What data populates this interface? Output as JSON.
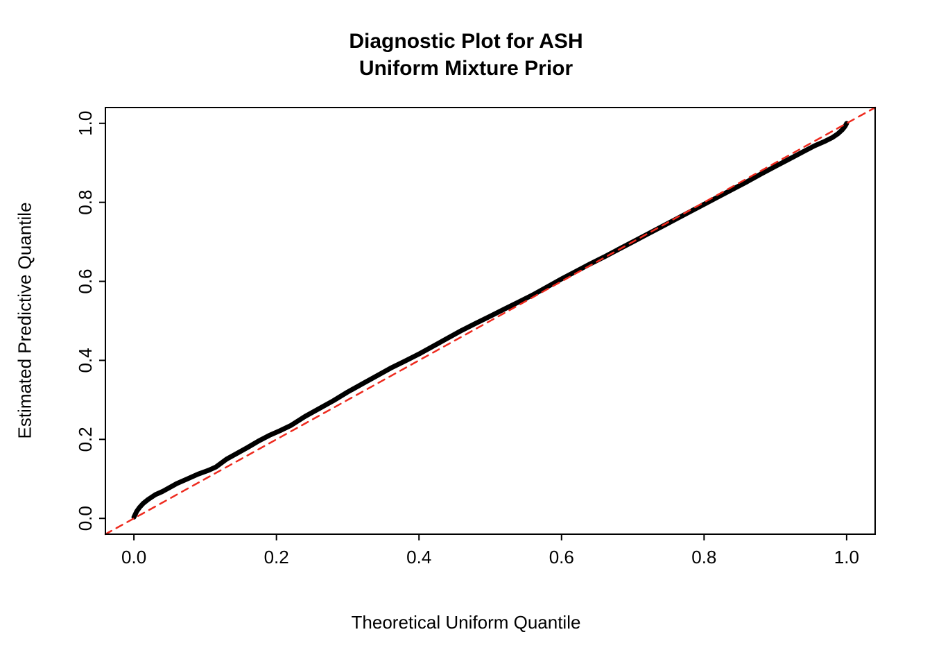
{
  "chart_data": {
    "type": "line",
    "title": "Diagnostic Plot for ASH\nUniform Mixture Prior",
    "title_lines": [
      "Diagnostic Plot for ASH",
      "Uniform Mixture Prior"
    ],
    "xlabel": "Theoretical Uniform Quantile",
    "ylabel": "Estimated Predictive Quantile",
    "xlim": [
      0,
      1
    ],
    "ylim": [
      0,
      1
    ],
    "grid": false,
    "x_ticks": {
      "values": [
        0,
        0.2,
        0.4,
        0.6,
        0.8,
        1.0
      ],
      "labels": [
        "0.0",
        "0.2",
        "0.4",
        "0.6",
        "0.8",
        "1.0"
      ]
    },
    "y_ticks": {
      "values": [
        0,
        0.2,
        0.4,
        0.6,
        0.8,
        1.0
      ],
      "labels": [
        "0.0",
        "0.2",
        "0.4",
        "0.6",
        "0.8",
        "1.0"
      ]
    },
    "series": [
      {
        "name": "estimated-predictive-quantiles",
        "type": "line",
        "style": "solid",
        "color": "#000000",
        "line_width": 7,
        "points": [
          [
            0.0,
            0.003
          ],
          [
            0.004,
            0.018
          ],
          [
            0.008,
            0.028
          ],
          [
            0.013,
            0.038
          ],
          [
            0.02,
            0.048
          ],
          [
            0.03,
            0.06
          ],
          [
            0.04,
            0.068
          ],
          [
            0.05,
            0.078
          ],
          [
            0.06,
            0.088
          ],
          [
            0.075,
            0.1
          ],
          [
            0.09,
            0.112
          ],
          [
            0.105,
            0.122
          ],
          [
            0.115,
            0.13
          ],
          [
            0.13,
            0.15
          ],
          [
            0.145,
            0.165
          ],
          [
            0.16,
            0.18
          ],
          [
            0.175,
            0.196
          ],
          [
            0.19,
            0.21
          ],
          [
            0.205,
            0.222
          ],
          [
            0.22,
            0.235
          ],
          [
            0.24,
            0.258
          ],
          [
            0.26,
            0.278
          ],
          [
            0.28,
            0.298
          ],
          [
            0.3,
            0.32
          ],
          [
            0.32,
            0.34
          ],
          [
            0.34,
            0.36
          ],
          [
            0.36,
            0.38
          ],
          [
            0.38,
            0.398
          ],
          [
            0.4,
            0.416
          ],
          [
            0.42,
            0.436
          ],
          [
            0.44,
            0.456
          ],
          [
            0.46,
            0.476
          ],
          [
            0.48,
            0.494
          ],
          [
            0.5,
            0.512
          ],
          [
            0.52,
            0.53
          ],
          [
            0.54,
            0.548
          ],
          [
            0.56,
            0.566
          ],
          [
            0.58,
            0.586
          ],
          [
            0.6,
            0.606
          ],
          [
            0.62,
            0.625
          ],
          [
            0.64,
            0.644
          ],
          [
            0.66,
            0.662
          ],
          [
            0.68,
            0.681
          ],
          [
            0.7,
            0.7
          ],
          [
            0.72,
            0.719
          ],
          [
            0.74,
            0.738
          ],
          [
            0.76,
            0.757
          ],
          [
            0.78,
            0.776
          ],
          [
            0.8,
            0.795
          ],
          [
            0.82,
            0.814
          ],
          [
            0.84,
            0.833
          ],
          [
            0.86,
            0.852
          ],
          [
            0.88,
            0.872
          ],
          [
            0.9,
            0.891
          ],
          [
            0.92,
            0.91
          ],
          [
            0.94,
            0.929
          ],
          [
            0.955,
            0.943
          ],
          [
            0.97,
            0.955
          ],
          [
            0.98,
            0.964
          ],
          [
            0.988,
            0.974
          ],
          [
            0.994,
            0.984
          ],
          [
            0.998,
            0.993
          ],
          [
            1.0,
            1.0
          ]
        ]
      },
      {
        "name": "reference-identity-line",
        "type": "line",
        "style": "dashed",
        "color": "#ee2a1e",
        "line_width": 2.5,
        "points": [
          [
            -0.04,
            -0.04
          ],
          [
            1.04,
            1.04
          ]
        ]
      }
    ]
  }
}
